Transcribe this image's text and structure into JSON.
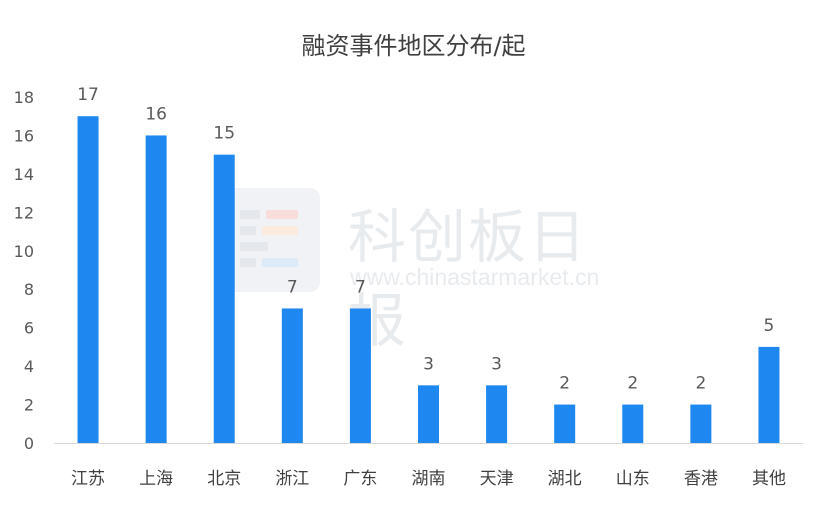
{
  "chart_data": {
    "type": "bar",
    "title": "融资事件地区分布/起",
    "categories": [
      "江苏",
      "上海",
      "北京",
      "浙江",
      "广东",
      "湖南",
      "天津",
      "湖北",
      "山东",
      "香港",
      "其他"
    ],
    "series": [
      {
        "values": [
          17,
          16,
          15,
          7,
          7,
          3,
          3,
          2,
          2,
          2,
          5
        ]
      }
    ],
    "ylim": [
      0,
      18
    ],
    "yticks": [
      0,
      2,
      4,
      6,
      8,
      10,
      12,
      14,
      16,
      18
    ],
    "grid": false,
    "bar_color": "#1E88F0",
    "data_labels": true
  },
  "watermark": {
    "text_cn": "科创板日报",
    "url": "www.chinastarmarket.cn"
  }
}
